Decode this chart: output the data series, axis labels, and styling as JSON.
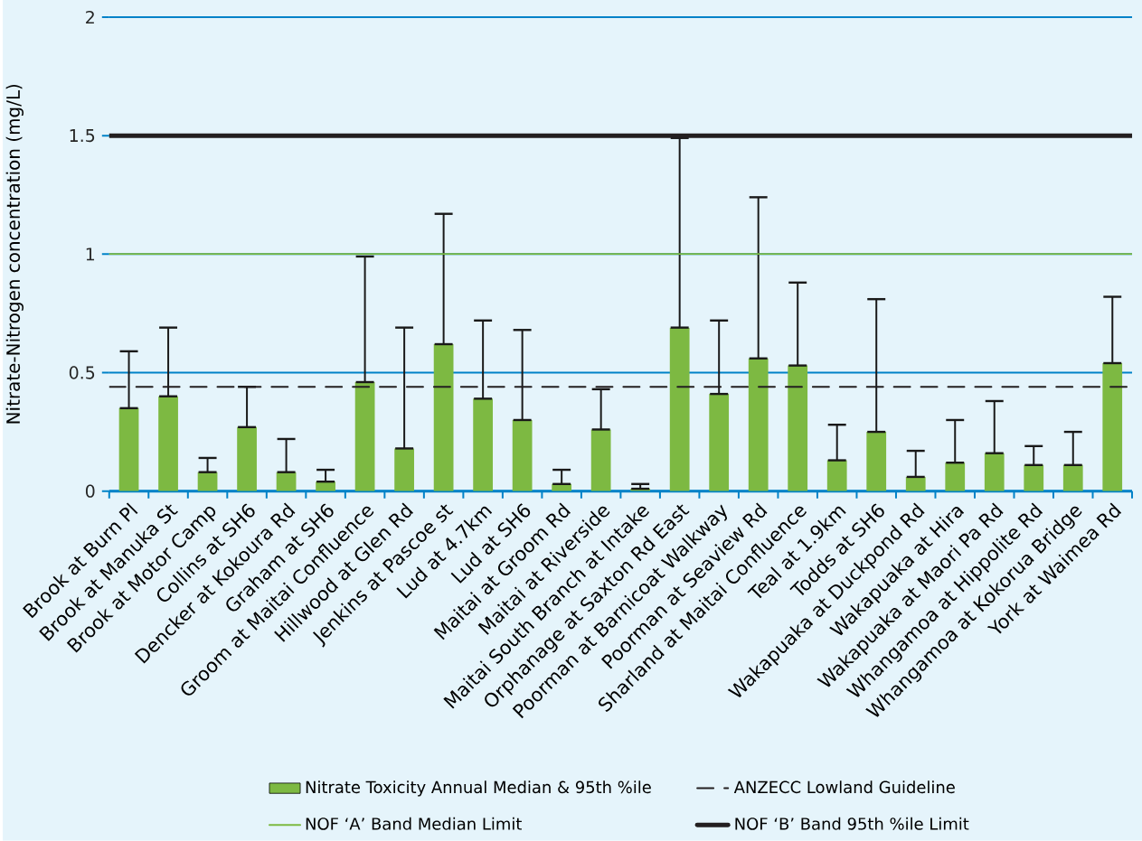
{
  "chart_data": {
    "type": "bar",
    "ylabel": "Nitrate-Nitrogen concentration (mg/L)",
    "categories": [
      "Brook at Burn Pl",
      "Brook at Manuka St",
      "Brook at Motor Camp",
      "Collins at SH6",
      "Dencker at Kokoura Rd",
      "Graham at SH6",
      "Groom at Maitai Confluence",
      "Hillwood at Glen Rd",
      "Jenkins at Pascoe st",
      "Lud at 4.7km",
      "Lud at SH6",
      "Maitai at Groom Rd",
      "Maitai at Riverside",
      "Maitai South Branch at Intake",
      "Orphanage at Saxton Rd East",
      "Poorman at Barnicoat Walkway",
      "Poorman at Seaview Rd",
      "Sharland at Maitai Confluence",
      "Teal at 1.9km",
      "Todds at SH6",
      "Wakapuaka at Duckpond Rd",
      "Wakapuaka at Hira",
      "Wakapuaka at Maori Pa Rd",
      "Whangamoa at Hippolite Rd",
      "Whangamoa at Kokorua Bridge",
      "York at Waimea Rd"
    ],
    "series": [
      {
        "name": "Nitrate Toxicity Annual Median & 95th %ile",
        "color": "#7db942",
        "values": [
          0.35,
          0.4,
          0.08,
          0.27,
          0.08,
          0.04,
          0.46,
          0.18,
          0.62,
          0.39,
          0.3,
          0.03,
          0.26,
          0.01,
          0.69,
          0.41,
          0.56,
          0.53,
          0.13,
          0.25,
          0.06,
          0.12,
          0.16,
          0.11,
          0.11,
          0.54
        ],
        "errors": [
          [
            0.35,
            0.59
          ],
          [
            0.4,
            0.69
          ],
          [
            0.08,
            0.14
          ],
          [
            0.27,
            0.44
          ],
          [
            0.08,
            0.22
          ],
          [
            0.04,
            0.09
          ],
          [
            0.46,
            0.99
          ],
          [
            0.18,
            0.69
          ],
          [
            0.62,
            1.17
          ],
          [
            0.39,
            0.72
          ],
          [
            0.3,
            0.68
          ],
          [
            0.03,
            0.09
          ],
          [
            0.26,
            0.43
          ],
          [
            0.01,
            0.03
          ],
          [
            0.69,
            1.49
          ],
          [
            0.41,
            0.72
          ],
          [
            0.56,
            1.24
          ],
          [
            0.53,
            0.88
          ],
          [
            0.13,
            0.28
          ],
          [
            0.25,
            0.81
          ],
          [
            0.06,
            0.17
          ],
          [
            0.12,
            0.3
          ],
          [
            0.16,
            0.38
          ],
          [
            0.11,
            0.19
          ],
          [
            0.11,
            0.25
          ],
          [
            0.54,
            0.82
          ]
        ]
      }
    ],
    "ylim": [
      0,
      2
    ],
    "yticks": [
      0,
      0.5,
      1,
      1.5,
      2
    ],
    "grid": "y",
    "legend": "bottom",
    "ref_lines": [
      {
        "axis": "y",
        "value": 0.44,
        "label": "ANZECC Lowland Guideline",
        "color": "#231f20",
        "line_style": "dashed"
      },
      {
        "axis": "y",
        "value": 1,
        "label": "NOF ‘A’ Band Median Limit",
        "color": "#7db942",
        "line_style": "solid"
      },
      {
        "axis": "y",
        "value": 1.5,
        "label": "NOF ‘B’ Band 95th %ile Limit",
        "color": "#231f20",
        "line_style": "solid"
      }
    ]
  }
}
